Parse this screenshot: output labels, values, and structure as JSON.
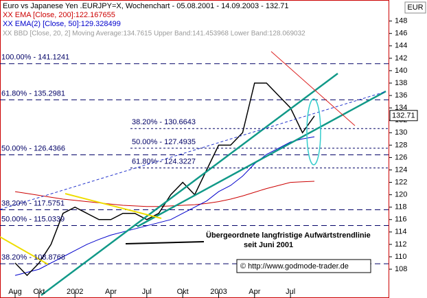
{
  "chart_data": {
    "type": "line",
    "title": "Euro vs Japanese Yen .EURJPY=X, Wochenchart - 05.08.2001 - 14.09.2003 - 132.71",
    "indicator_note": "XX BBD [Close, 20, 2] Moving Average:134.7615 Upper Band:141.453968 Lower Band:128.069032",
    "currency": "EUR",
    "last_price": 132.71,
    "categories": [
      "Aug",
      null,
      "Okt",
      null,
      null,
      "2002",
      null,
      null,
      "Apr",
      null,
      null,
      "Jul",
      null,
      null,
      "Okt",
      null,
      null,
      "2003",
      null,
      null,
      "Apr",
      null,
      null,
      "Jul",
      null,
      null
    ],
    "close": {
      "color": "#000000",
      "values": [
        109,
        107,
        109,
        112,
        117,
        118,
        117,
        116,
        116,
        117,
        117,
        116,
        117,
        120,
        122,
        120,
        124,
        128,
        128,
        130,
        138,
        138,
        136,
        134,
        130,
        132.71
      ]
    },
    "series": [
      {
        "name": "XX EMA [Close, 200]:122.167655",
        "color": "#cc0000",
        "values": [
          120.5,
          120.2,
          119.9,
          119.6,
          119.3,
          119.1,
          118.9,
          118.7,
          118.5,
          118.3,
          118.2,
          118.1,
          118.1,
          118.2,
          118.3,
          118.4,
          118.6,
          118.9,
          119.3,
          119.8,
          120.4,
          121,
          121.5,
          122,
          122.1,
          122.17
        ]
      },
      {
        "name": "XX EMA(2) [Close, 50]:129.328499",
        "color": "#0000cc",
        "values": [
          107,
          107.5,
          108,
          109,
          110,
          111,
          112,
          112.8,
          113.5,
          114,
          114.5,
          115,
          115.5,
          116,
          117,
          118,
          119,
          120.5,
          121.5,
          123,
          125,
          126.5,
          127.5,
          128.5,
          129,
          129.33
        ]
      }
    ],
    "fib_levels": [
      {
        "label": "100.00% - 141.1241",
        "value": 141.1241
      },
      {
        "label": "61.80% - 135.2981",
        "value": 135.2981
      },
      {
        "label": "38.20% - 130.6643",
        "value": 130.6643
      },
      {
        "label": "50.00% - 127.4935",
        "value": 127.4935
      },
      {
        "label": "61.80% - 124.3227",
        "value": 124.3227
      },
      {
        "label": "50.00% - 126.4366",
        "value": 126.4366
      },
      {
        "label": "38.20% - 117.5751",
        "value": 117.5751
      },
      {
        "label": "50.00% - 115.0339",
        "value": 115.0339
      },
      {
        "label": "38.20% - 108.8768",
        "value": 108.8768
      }
    ],
    "annotation": "Übergeordnete langfristige Aufwärtstrendlinie",
    "annotation_sub": "seit Juni 2001",
    "copyright": "© http://www.godmode-trader.de",
    "ylim": [
      103.8,
      149.4
    ],
    "yticks": [
      108,
      110,
      112,
      114,
      116,
      118,
      120,
      122,
      124,
      126,
      128,
      130,
      132,
      134,
      136,
      138,
      140,
      142,
      144,
      146,
      148
    ]
  }
}
